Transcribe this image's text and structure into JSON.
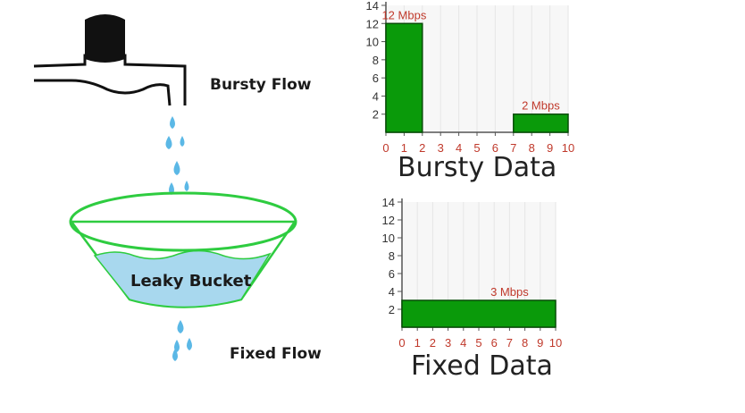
{
  "labels": {
    "bursty_flow": "Bursty Flow",
    "leaky_bucket": "Leaky Bucket",
    "fixed_flow": "Fixed Flow"
  },
  "chart_data": [
    {
      "type": "bar",
      "title": "Bursty Data",
      "xlim": [
        0,
        10
      ],
      "ylim": [
        0,
        14
      ],
      "x_ticks": [
        "0",
        "1",
        "2",
        "3",
        "4",
        "5",
        "6",
        "7",
        "8",
        "9",
        "10"
      ],
      "y_ticks": [
        "2",
        "4",
        "6",
        "8",
        "10",
        "12",
        "14"
      ],
      "bars": [
        {
          "x_start": 0,
          "x_end": 2,
          "value": 12,
          "label": "12 Mbps"
        },
        {
          "x_start": 7,
          "x_end": 10,
          "value": 2,
          "label": "2 Mbps"
        }
      ]
    },
    {
      "type": "bar",
      "title": "Fixed Data",
      "xlim": [
        0,
        10
      ],
      "ylim": [
        0,
        14
      ],
      "x_ticks": [
        "0",
        "1",
        "2",
        "3",
        "4",
        "5",
        "6",
        "7",
        "8",
        "9",
        "10"
      ],
      "y_ticks": [
        "2",
        "4",
        "6",
        "8",
        "10",
        "12",
        "14"
      ],
      "bars": [
        {
          "x_start": 0,
          "x_end": 10,
          "value": 3,
          "label": "3 Mbps"
        }
      ]
    }
  ],
  "colors": {
    "bar_fill": "#0a9a0a",
    "bar_stroke": "#064d06",
    "tick_label": "#c0392b",
    "bucket_rim": "#2ecc40",
    "water": "#a8d8ee",
    "drop": "#5bb8e6",
    "tap": "#111111"
  }
}
